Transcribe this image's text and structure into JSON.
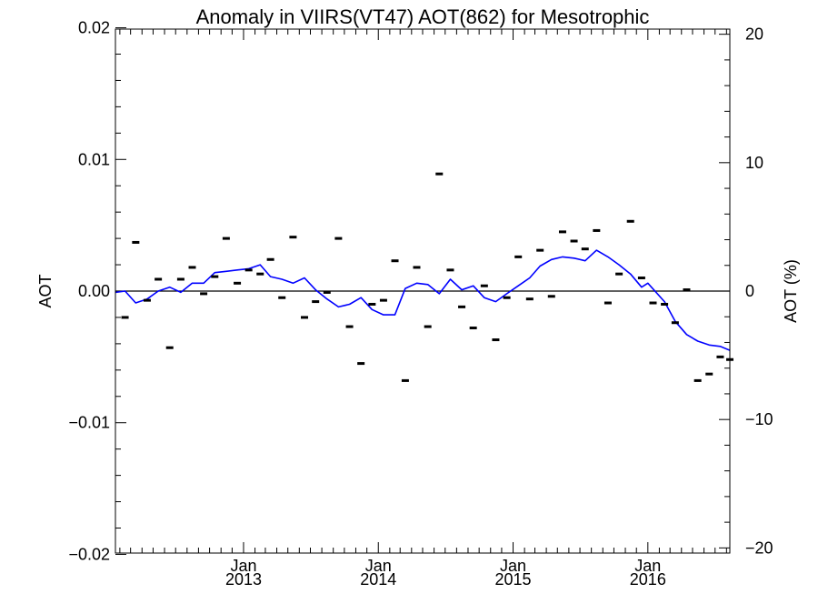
{
  "chart_data": {
    "type": "line",
    "title": "Anomaly in VIIRS(VT47) AOT(862) for Mesotrophic",
    "ylabel": "AOT",
    "ylabel_right": "AOT (%)",
    "xlabel": "",
    "x_ticks": [
      {
        "date": "2013-01-01",
        "line1": "Jan",
        "line2": "2013"
      },
      {
        "date": "2014-01-01",
        "line1": "Jan",
        "line2": "2014"
      },
      {
        "date": "2015-01-01",
        "line1": "Jan",
        "line2": "2015"
      },
      {
        "date": "2016-01-01",
        "line1": "Jan",
        "line2": "2016"
      }
    ],
    "y_ticks": [
      "0.02",
      "0.01",
      "0.00",
      "-0.01",
      "-0.02"
    ],
    "y_ticks_right": [
      "20",
      "10",
      "0",
      "-10",
      "-20"
    ],
    "xlim": [
      "2012-01-20",
      "2016-08-10"
    ],
    "ylim": [
      -0.0199,
      0.0199
    ],
    "ylim_right": [
      -20.4,
      20.4
    ],
    "grid": false,
    "reference_line_y": 0.0,
    "colors": {
      "line": "#0000ff",
      "markers": "#000000",
      "axes": "#000000",
      "background": "#ffffff"
    },
    "series": [
      {
        "style": "markers",
        "points": [
          {
            "x": "2012-01-17",
            "y": -0.0027
          },
          {
            "x": "2012-02-15",
            "y": -0.002
          },
          {
            "x": "2012-03-15",
            "y": 0.0037
          },
          {
            "x": "2012-04-15",
            "y": -0.0007
          },
          {
            "x": "2012-05-15",
            "y": 0.0009
          },
          {
            "x": "2012-06-15",
            "y": -0.0043
          },
          {
            "x": "2012-07-15",
            "y": 0.0009
          },
          {
            "x": "2012-08-15",
            "y": 0.0018
          },
          {
            "x": "2012-09-15",
            "y": -0.0002
          },
          {
            "x": "2012-10-15",
            "y": 0.0011
          },
          {
            "x": "2012-11-15",
            "y": 0.004
          },
          {
            "x": "2012-12-15",
            "y": 0.0006
          },
          {
            "x": "2013-01-15",
            "y": 0.0016
          },
          {
            "x": "2013-02-15",
            "y": 0.0013
          },
          {
            "x": "2013-03-15",
            "y": 0.0024
          },
          {
            "x": "2013-04-15",
            "y": -0.0005
          },
          {
            "x": "2013-05-15",
            "y": 0.0041
          },
          {
            "x": "2013-06-15",
            "y": -0.002
          },
          {
            "x": "2013-07-15",
            "y": -0.0008
          },
          {
            "x": "2013-08-15",
            "y": -0.0001
          },
          {
            "x": "2013-09-15",
            "y": 0.004
          },
          {
            "x": "2013-10-15",
            "y": -0.0027
          },
          {
            "x": "2013-11-15",
            "y": -0.0055
          },
          {
            "x": "2013-12-15",
            "y": -0.001
          },
          {
            "x": "2014-01-15",
            "y": -0.0007
          },
          {
            "x": "2014-02-15",
            "y": 0.0023
          },
          {
            "x": "2014-03-15",
            "y": -0.0068
          },
          {
            "x": "2014-04-15",
            "y": 0.0018
          },
          {
            "x": "2014-05-15",
            "y": -0.0027
          },
          {
            "x": "2014-06-15",
            "y": 0.0089
          },
          {
            "x": "2014-07-15",
            "y": 0.0016
          },
          {
            "x": "2014-08-15",
            "y": -0.0012
          },
          {
            "x": "2014-09-15",
            "y": -0.0028
          },
          {
            "x": "2014-10-15",
            "y": 0.0004
          },
          {
            "x": "2014-11-15",
            "y": -0.0037
          },
          {
            "x": "2014-12-15",
            "y": -0.0005
          },
          {
            "x": "2015-01-15",
            "y": 0.0026
          },
          {
            "x": "2015-02-15",
            "y": -0.0006
          },
          {
            "x": "2015-03-15",
            "y": 0.0031
          },
          {
            "x": "2015-04-15",
            "y": -0.0004
          },
          {
            "x": "2015-05-15",
            "y": 0.0045
          },
          {
            "x": "2015-06-15",
            "y": 0.0038
          },
          {
            "x": "2015-07-15",
            "y": 0.0032
          },
          {
            "x": "2015-08-15",
            "y": 0.0046
          },
          {
            "x": "2015-09-15",
            "y": -0.0009
          },
          {
            "x": "2015-10-15",
            "y": 0.0013
          },
          {
            "x": "2015-11-15",
            "y": 0.0053
          },
          {
            "x": "2015-12-15",
            "y": 0.001
          },
          {
            "x": "2016-01-15",
            "y": -0.0009
          },
          {
            "x": "2016-02-15",
            "y": -0.001
          },
          {
            "x": "2016-03-15",
            "y": -0.0024
          },
          {
            "x": "2016-04-15",
            "y": 0.0001
          },
          {
            "x": "2016-05-15",
            "y": -0.0068
          },
          {
            "x": "2016-06-15",
            "y": -0.0063
          },
          {
            "x": "2016-07-15",
            "y": -0.005
          },
          {
            "x": "2016-08-10",
            "y": -0.0052
          }
        ]
      },
      {
        "style": "line",
        "points": [
          {
            "x": "2012-01-20",
            "y": -0.0001
          },
          {
            "x": "2012-02-15",
            "y": 0.0
          },
          {
            "x": "2012-03-15",
            "y": -0.0009
          },
          {
            "x": "2012-04-15",
            "y": -0.0006
          },
          {
            "x": "2012-05-15",
            "y": 0.0
          },
          {
            "x": "2012-06-15",
            "y": 0.0003
          },
          {
            "x": "2012-07-15",
            "y": -0.0001
          },
          {
            "x": "2012-08-15",
            "y": 0.0006
          },
          {
            "x": "2012-09-15",
            "y": 0.0006
          },
          {
            "x": "2012-10-15",
            "y": 0.0014
          },
          {
            "x": "2012-11-15",
            "y": 0.0015
          },
          {
            "x": "2012-12-15",
            "y": 0.0016
          },
          {
            "x": "2013-01-15",
            "y": 0.0017
          },
          {
            "x": "2013-02-15",
            "y": 0.002
          },
          {
            "x": "2013-03-15",
            "y": 0.0011
          },
          {
            "x": "2013-04-15",
            "y": 0.0009
          },
          {
            "x": "2013-05-15",
            "y": 0.0006
          },
          {
            "x": "2013-06-15",
            "y": 0.001
          },
          {
            "x": "2013-07-15",
            "y": 0.0001
          },
          {
            "x": "2013-08-15",
            "y": -0.0006
          },
          {
            "x": "2013-09-15",
            "y": -0.0012
          },
          {
            "x": "2013-10-15",
            "y": -0.001
          },
          {
            "x": "2013-11-15",
            "y": -0.0005
          },
          {
            "x": "2013-12-15",
            "y": -0.0014
          },
          {
            "x": "2014-01-15",
            "y": -0.0018
          },
          {
            "x": "2014-02-15",
            "y": -0.0018
          },
          {
            "x": "2014-03-15",
            "y": 0.0002
          },
          {
            "x": "2014-04-15",
            "y": 0.0006
          },
          {
            "x": "2014-05-15",
            "y": 0.0005
          },
          {
            "x": "2014-06-15",
            "y": -0.0002
          },
          {
            "x": "2014-07-15",
            "y": 0.0009
          },
          {
            "x": "2014-08-15",
            "y": 0.0001
          },
          {
            "x": "2014-09-15",
            "y": 0.0004
          },
          {
            "x": "2014-10-15",
            "y": -0.0005
          },
          {
            "x": "2014-11-15",
            "y": -0.0008
          },
          {
            "x": "2014-12-15",
            "y": -0.0002
          },
          {
            "x": "2015-01-15",
            "y": 0.0004
          },
          {
            "x": "2015-02-15",
            "y": 0.001
          },
          {
            "x": "2015-03-15",
            "y": 0.0019
          },
          {
            "x": "2015-04-15",
            "y": 0.0024
          },
          {
            "x": "2015-05-15",
            "y": 0.0026
          },
          {
            "x": "2015-06-15",
            "y": 0.0025
          },
          {
            "x": "2015-07-15",
            "y": 0.0023
          },
          {
            "x": "2015-08-15",
            "y": 0.0031
          },
          {
            "x": "2015-09-15",
            "y": 0.0026
          },
          {
            "x": "2015-10-15",
            "y": 0.002
          },
          {
            "x": "2015-11-15",
            "y": 0.0013
          },
          {
            "x": "2015-12-15",
            "y": 0.0003
          },
          {
            "x": "2016-01-01",
            "y": 0.0006
          },
          {
            "x": "2016-02-15",
            "y": -0.0008
          },
          {
            "x": "2016-03-15",
            "y": -0.0023
          },
          {
            "x": "2016-04-15",
            "y": -0.0033
          },
          {
            "x": "2016-05-15",
            "y": -0.0038
          },
          {
            "x": "2016-06-15",
            "y": -0.0041
          },
          {
            "x": "2016-07-15",
            "y": -0.0042
          },
          {
            "x": "2016-08-10",
            "y": -0.0045
          }
        ]
      }
    ]
  }
}
